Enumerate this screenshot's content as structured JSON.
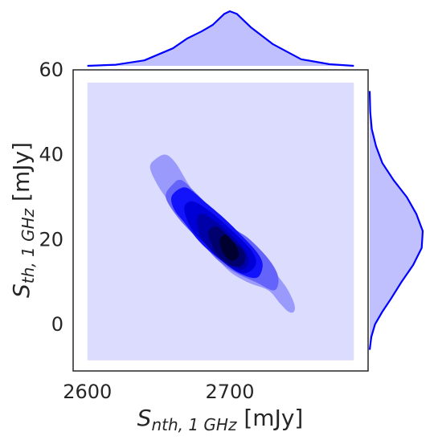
{
  "chart_data": {
    "type": "kde-joint",
    "xlabel": {
      "symbol": "S",
      "sub": "nth, 1 GHz",
      "unit": "[mJy]"
    },
    "ylabel": {
      "symbol": "S",
      "sub": "th, 1 GHz",
      "unit": "[mJy]"
    },
    "xlim": [
      2590,
      2797
    ],
    "ylim": [
      -11,
      60
    ],
    "xticks": [
      2600,
      2700
    ],
    "yticks": [
      0,
      20,
      40,
      60
    ],
    "color": "#0000ff",
    "fill_background": "#dcdcff",
    "density_peak": {
      "x": 2700,
      "y": 18
    },
    "correlation": -0.85,
    "filled_extent": {
      "x": [
        2600,
        2787
      ],
      "y": [
        -8.5,
        57
      ]
    },
    "contour_levels": [
      {
        "level": 1,
        "color": "#9a9afc",
        "poly": [
          [
            2644,
            37
          ],
          [
            2648,
            39
          ],
          [
            2655,
            40
          ],
          [
            2662,
            38
          ],
          [
            2671,
            33
          ],
          [
            2681,
            28
          ],
          [
            2693,
            23
          ],
          [
            2712,
            18
          ],
          [
            2729,
            13
          ],
          [
            2739,
            9
          ],
          [
            2745,
            5
          ],
          [
            2745,
            3
          ],
          [
            2741,
            3
          ],
          [
            2735,
            5
          ],
          [
            2727,
            8
          ],
          [
            2712,
            10
          ],
          [
            2698,
            13
          ],
          [
            2683,
            19
          ],
          [
            2667,
            25
          ],
          [
            2657,
            29
          ],
          [
            2649,
            33
          ]
        ]
      },
      {
        "level": 2,
        "color": "#6464fb",
        "poly": [
          [
            2655,
            30
          ],
          [
            2660,
            33
          ],
          [
            2666,
            34
          ],
          [
            2676,
            31
          ],
          [
            2688,
            27
          ],
          [
            2701,
            23
          ],
          [
            2714,
            20
          ],
          [
            2728,
            15
          ],
          [
            2734,
            11
          ],
          [
            2731,
            8
          ],
          [
            2718,
            10
          ],
          [
            2705,
            12
          ],
          [
            2692,
            15
          ],
          [
            2678,
            20
          ],
          [
            2664,
            25
          ]
        ]
      },
      {
        "level": 3,
        "color": "#1212fb",
        "poly": [
          [
            2659,
            30
          ],
          [
            2665,
            32
          ],
          [
            2671,
            32
          ],
          [
            2682,
            29
          ],
          [
            2696,
            25
          ],
          [
            2708,
            21
          ],
          [
            2719,
            17
          ],
          [
            2723,
            14
          ],
          [
            2719,
            11
          ],
          [
            2707,
            12
          ],
          [
            2694,
            15
          ],
          [
            2680,
            19
          ],
          [
            2668,
            24
          ],
          [
            2661,
            27
          ]
        ]
      },
      {
        "level": 4,
        "color": "#0000d6",
        "poly": [
          [
            2668,
            27
          ],
          [
            2672,
            29
          ],
          [
            2680,
            28
          ],
          [
            2692,
            25
          ],
          [
            2705,
            21
          ],
          [
            2716,
            17
          ],
          [
            2718,
            14
          ],
          [
            2710,
            12
          ],
          [
            2698,
            14
          ],
          [
            2686,
            18
          ],
          [
            2674,
            22
          ]
        ]
      },
      {
        "level": 5,
        "color": "#0000a8",
        "poly": [
          [
            2677,
            25
          ],
          [
            2681,
            26
          ],
          [
            2691,
            24
          ],
          [
            2704,
            20
          ],
          [
            2713,
            16
          ],
          [
            2710,
            13
          ],
          [
            2699,
            14
          ],
          [
            2688,
            17
          ],
          [
            2679,
            21
          ]
        ]
      },
      {
        "level": 6,
        "color": "#00006e",
        "poly": [
          [
            2685,
            22
          ],
          [
            2691,
            23
          ],
          [
            2701,
            20
          ],
          [
            2710,
            17
          ],
          [
            2709,
            14
          ],
          [
            2700,
            14
          ],
          [
            2690,
            17
          ],
          [
            2686,
            20
          ]
        ]
      },
      {
        "level": 7,
        "color": "#000030",
        "poly": [
          [
            2693,
            20
          ],
          [
            2698,
            21
          ],
          [
            2705,
            18
          ],
          [
            2706,
            16
          ],
          [
            2701,
            15
          ],
          [
            2695,
            17
          ]
        ]
      }
    ],
    "marginal_x": {
      "x": [
        2600,
        2620,
        2640,
        2660,
        2670,
        2680,
        2688,
        2696,
        2700,
        2705,
        2715,
        2730,
        2750,
        2770,
        2787
      ],
      "density": [
        0.0,
        0.02,
        0.1,
        0.32,
        0.5,
        0.63,
        0.75,
        0.95,
        1.0,
        0.95,
        0.7,
        0.4,
        0.12,
        0.03,
        0.0
      ]
    },
    "marginal_y": {
      "y": [
        -6,
        -3,
        0,
        3,
        6,
        10,
        14,
        18,
        22,
        26,
        30,
        34,
        38,
        42,
        46,
        50,
        55
      ],
      "density": [
        0.0,
        0.03,
        0.1,
        0.24,
        0.4,
        0.6,
        0.82,
        0.98,
        1.0,
        0.88,
        0.7,
        0.45,
        0.24,
        0.12,
        0.04,
        0.01,
        0.0
      ]
    }
  }
}
